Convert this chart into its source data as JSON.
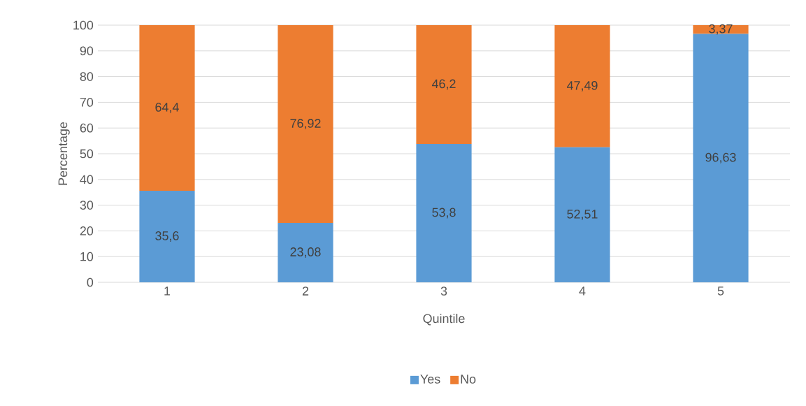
{
  "chart_data": {
    "type": "bar",
    "stacked": true,
    "xlabel": "Quintile",
    "ylabel": "Percentage",
    "categories": [
      "1",
      "2",
      "3",
      "4",
      "5"
    ],
    "series": [
      {
        "name": "Yes",
        "color": "#5b9bd5",
        "values": [
          35.6,
          23.08,
          53.8,
          52.51,
          96.63
        ],
        "value_labels": [
          "35,6",
          "23,08",
          "53,8",
          "52,51",
          "96,63"
        ]
      },
      {
        "name": "No",
        "color": "#ed7d31",
        "values": [
          64.4,
          76.92,
          46.2,
          47.49,
          3.37
        ],
        "value_labels": [
          "64,4",
          "76,92",
          "46,2",
          "47,49",
          "3,37"
        ]
      }
    ],
    "ylim": [
      0,
      100
    ],
    "yticks": [
      0,
      10,
      20,
      30,
      40,
      50,
      60,
      70,
      80,
      90,
      100
    ],
    "grid": "y",
    "legend": "bottom"
  }
}
